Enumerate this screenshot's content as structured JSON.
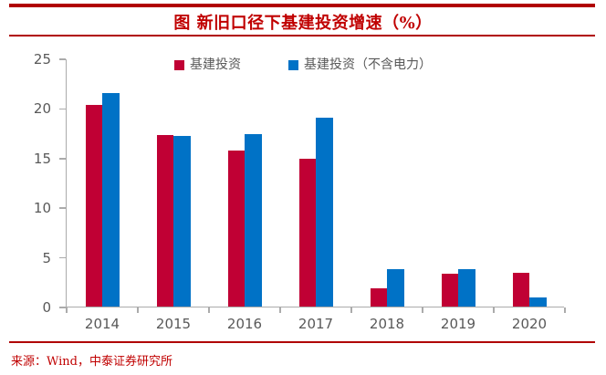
{
  "header": {
    "title": "图 新旧口径下基建投资增速（%）"
  },
  "source": {
    "text": "来源：Wind，中泰证券研究所"
  },
  "colors": {
    "rule_red": "#B00000",
    "title_red": "#C00000",
    "axis_gray": "#ABABAB",
    "label_gray": "#595959"
  },
  "chart_data": {
    "type": "bar",
    "title": "图 新旧口径下基建投资增速（%）",
    "categories": [
      "2014",
      "2015",
      "2016",
      "2017",
      "2018",
      "2019",
      "2020"
    ],
    "series": [
      {
        "name": "基建投资",
        "color": "#C00034",
        "values": [
          20.3,
          17.3,
          15.7,
          14.9,
          1.8,
          3.3,
          3.4
        ]
      },
      {
        "name": "基建投资（不含电力）",
        "color": "#0072C6",
        "values": [
          21.5,
          17.2,
          17.4,
          19.0,
          3.8,
          3.8,
          0.9
        ]
      }
    ],
    "xlabel": "",
    "ylabel": "",
    "ylim": [
      0,
      25
    ],
    "yticks": [
      0,
      5,
      10,
      15,
      20,
      25
    ],
    "grid": false,
    "legend_position": "top-center"
  }
}
